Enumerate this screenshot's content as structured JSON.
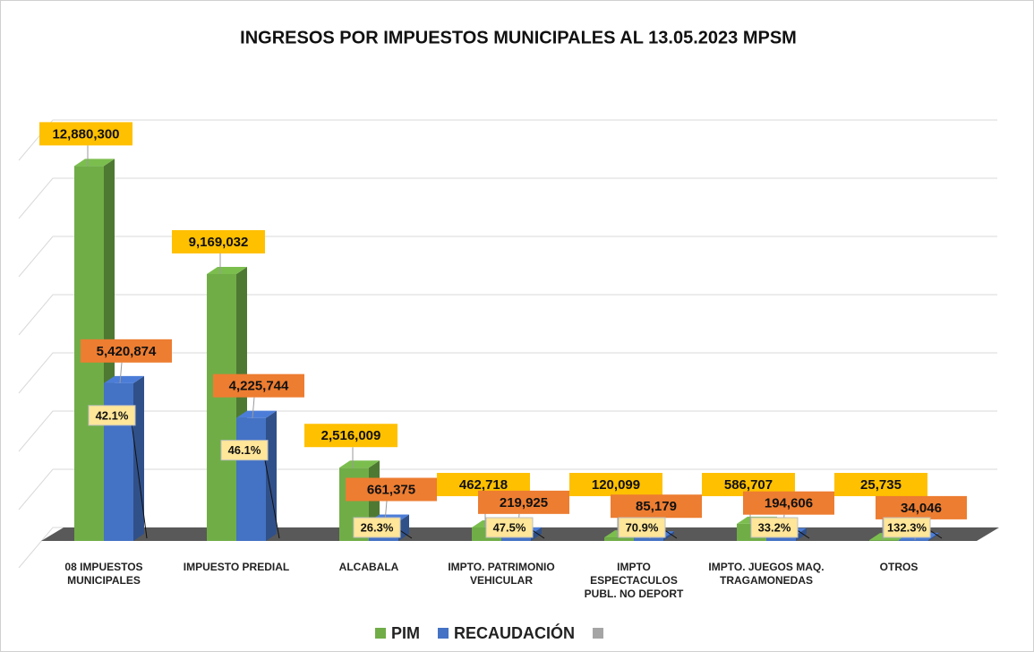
{
  "chart_data": {
    "type": "bar3d",
    "title": "INGRESOS POR IMPUESTOS MUNICIPALES AL 13.05.2023 MPSM",
    "categories": [
      "08 IMPUESTOS MUNICIPALES",
      "IMPUESTO PREDIAL",
      "ALCABALA",
      "IMPTO. PATRIMONIO VEHICULAR",
      "IMPTO ESPECTACULOS PUBL. NO DEPORT",
      "IMPTO. JUEGOS MAQ. TRAGAMONEDAS",
      "OTROS"
    ],
    "series": [
      {
        "name": "PIM",
        "color": "#70ad47",
        "values": [
          12880300,
          9169032,
          2516009,
          462718,
          120099,
          586707,
          25735
        ],
        "value_labels": [
          "12,880,300",
          "9,169,032",
          "2,516,009",
          "462,718",
          "120,099",
          "586,707",
          "25,735"
        ]
      },
      {
        "name": "RECAUDACIÓN",
        "color": "#4472c4",
        "values": [
          5420874,
          4225744,
          661375,
          219925,
          85179,
          194606,
          34046
        ],
        "value_labels": [
          "5,420,874",
          "4,225,744",
          "661,375",
          "219,925",
          "85,179",
          "194,606",
          "34,046"
        ]
      },
      {
        "color": "#a5a5a5",
        "values": [
          42.1,
          46.1,
          26.3,
          47.5,
          70.9,
          33.2,
          132.3
        ],
        "value_labels": [
          "42.1%",
          "46.1%",
          "26.3%",
          "47.5%",
          "70.9%",
          "33.2%",
          "132.3%"
        ]
      }
    ],
    "ylim": [
      0,
      14000000
    ],
    "yticks": [
      0,
      2000000,
      4000000,
      6000000,
      8000000,
      10000000,
      12000000,
      14000000
    ],
    "grid": true,
    "legend": "bottom"
  }
}
